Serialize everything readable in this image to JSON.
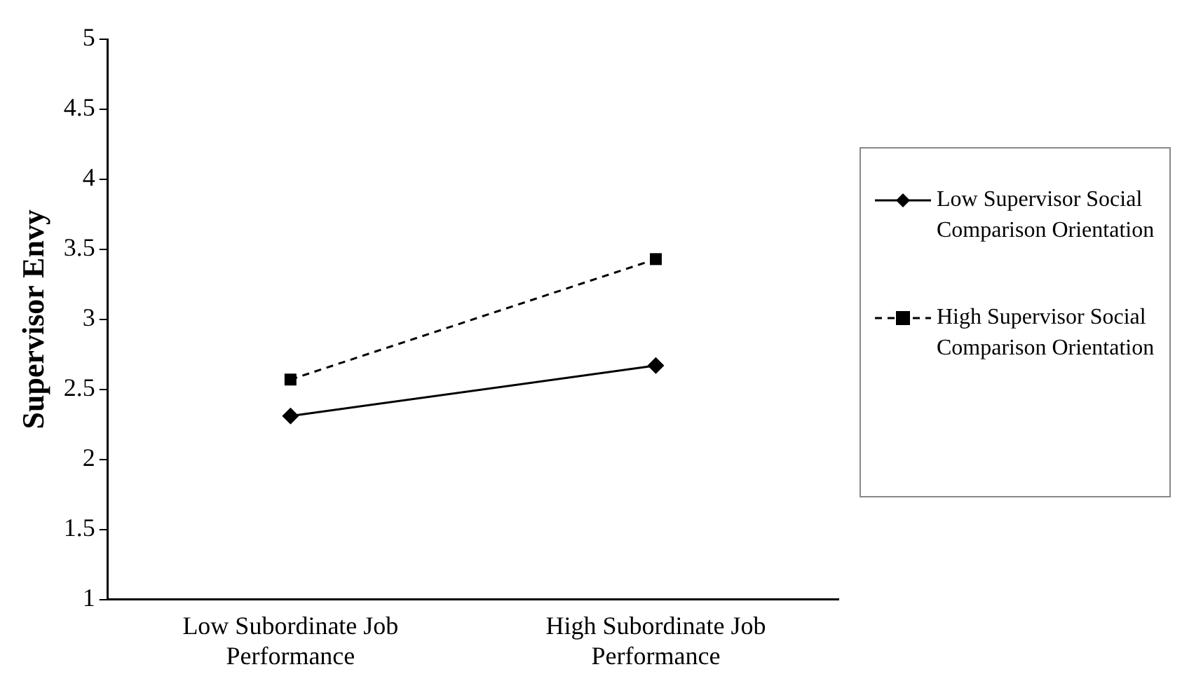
{
  "chart_data": {
    "type": "line",
    "ylabel": "Supervisor Envy",
    "categories": [
      "Low Subordinate Job Performance",
      "High Subordinate Job Performance"
    ],
    "series": [
      {
        "name": "Low Supervisor Social Comparison Orientation",
        "color": "#000000",
        "values": [
          2.31,
          2.67
        ],
        "marker": "diamond",
        "line_style": "solid"
      },
      {
        "name": "High Supervisor Social Comparison Orientation",
        "color": "#000000",
        "values": [
          2.57,
          3.43
        ],
        "marker": "square",
        "line_style": "dashed"
      }
    ],
    "ylim": [
      1,
      5
    ],
    "yticks": [
      1,
      1.5,
      2,
      2.5,
      3,
      3.5,
      4,
      4.5,
      5
    ],
    "grid": false,
    "legend": "right"
  }
}
